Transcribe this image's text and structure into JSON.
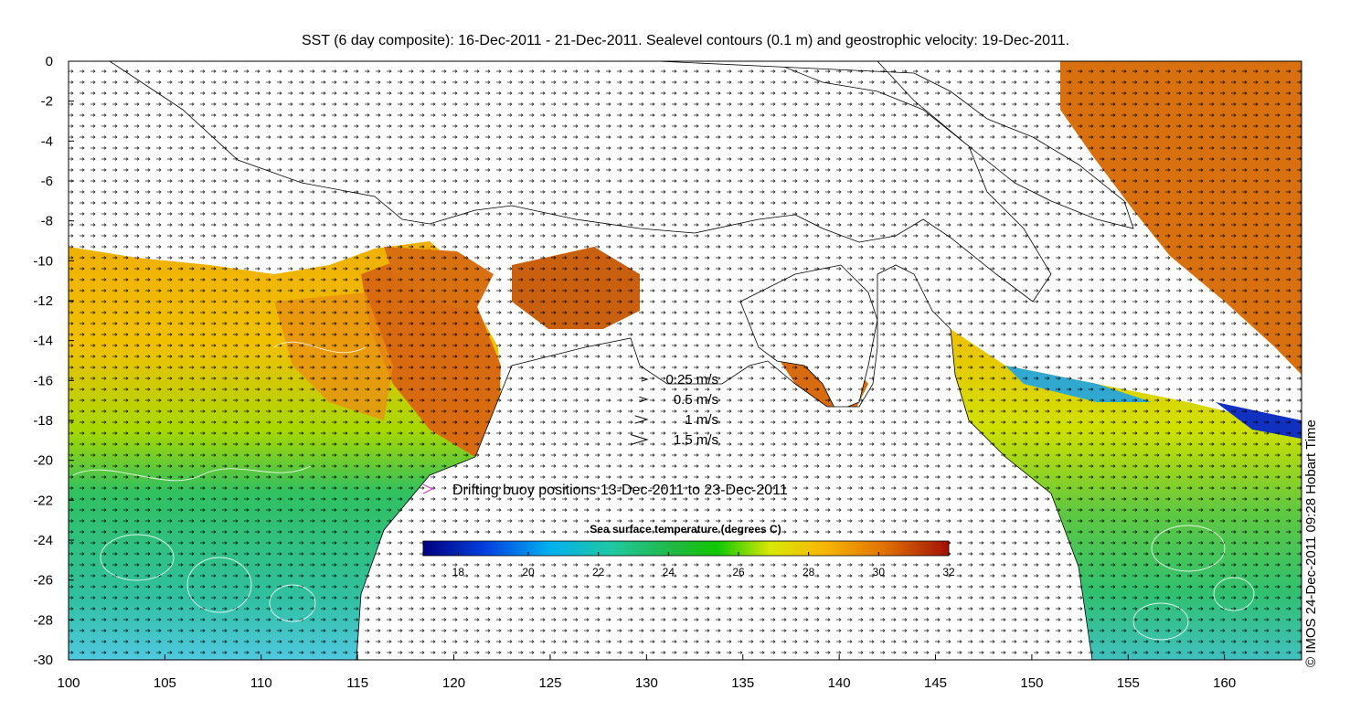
{
  "title": "SST (6 day composite): 16-Dec-2011 - 21-Dec-2011. Sealevel contours (0.1 m) and geostrophic velocity: 19-Dec-2011.",
  "credit": "© IMOS 24-Dec-2011 09:28 Hobart Time",
  "axes": {
    "x_ticks": [
      "100",
      "105",
      "110",
      "115",
      "120",
      "125",
      "130",
      "135",
      "140",
      "145",
      "150",
      "155",
      "160"
    ],
    "y_ticks": [
      "0",
      "-2",
      "-4",
      "-6",
      "-8",
      "-10",
      "-12",
      "-14",
      "-16",
      "-18",
      "-20",
      "-22",
      "-24",
      "-26",
      "-28",
      "-30"
    ],
    "lon_range": [
      100,
      164
    ],
    "lat_range": [
      -30,
      0
    ]
  },
  "velocity_legend": [
    {
      "label": "0.25 m/s",
      "speed": 0.25
    },
    {
      "label": "0.5 m/s",
      "speed": 0.5
    },
    {
      "label": "1 m/s",
      "speed": 1
    },
    {
      "label": "1.5 m/s",
      "speed": 1.5
    }
  ],
  "buoy_legend": {
    "label": "Drifting buoy positions 13-Dec-2011 to 23-Dec-2011",
    "color": "#d040d0"
  },
  "colorbar": {
    "title": "Sea surface temperature (degrees C)",
    "range": [
      17,
      32
    ],
    "ticks": [
      "18",
      "20",
      "22",
      "24",
      "26",
      "28",
      "30",
      "32"
    ],
    "colors": [
      "#000080",
      "#0040e0",
      "#00b0f0",
      "#20c8a0",
      "#20b840",
      "#10c800",
      "#d8e800",
      "#f8b800",
      "#e07000",
      "#a01000"
    ]
  },
  "colors": {
    "land": "#ffffff",
    "coast": "#000000",
    "arrow": "#000000",
    "contour": "#ffffff"
  }
}
